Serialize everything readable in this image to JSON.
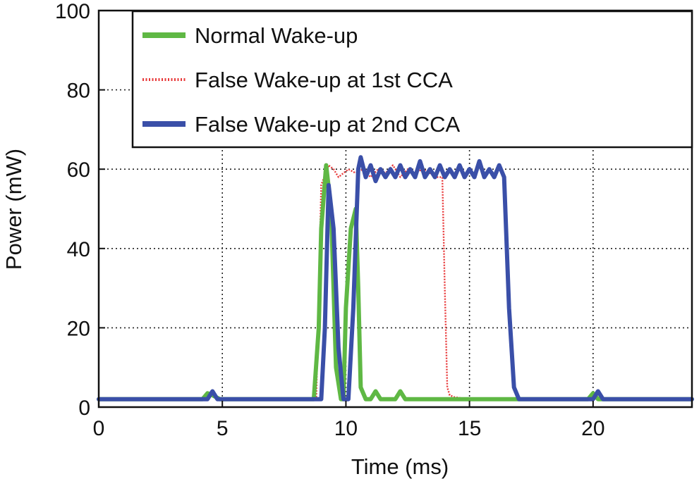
{
  "chart_data": {
    "type": "line",
    "title": "",
    "xlabel": "Time (ms)",
    "ylabel": "Power (mW)",
    "xlim": [
      0,
      24
    ],
    "ylim": [
      0,
      100
    ],
    "xticks": [
      0,
      5,
      10,
      15,
      20
    ],
    "yticks": [
      0,
      20,
      40,
      60,
      80,
      100
    ],
    "grid": true,
    "legend_position": "top-right",
    "series": [
      {
        "name": "False Wake-up at 1st CCA",
        "color": "#e8393a",
        "style": "dotted",
        "x": [
          0,
          4.1,
          4.3,
          4.5,
          4.7,
          4.9,
          8.8,
          9.0,
          9.3,
          9.5,
          9.7,
          9.9,
          10.1,
          10.4,
          10.7,
          11.0,
          11.3,
          11.6,
          11.9,
          12.2,
          12.5,
          12.8,
          13.1,
          13.4,
          13.7,
          13.9,
          14.0,
          14.1,
          14.2,
          14.4,
          15,
          16,
          17,
          19.9,
          20.1,
          20.3,
          24
        ],
        "y": [
          2,
          2,
          3,
          3.5,
          3,
          2,
          2,
          56,
          61,
          60,
          58,
          59,
          60,
          59,
          60,
          58,
          60,
          59,
          61,
          58,
          60,
          59,
          60,
          59,
          58,
          58,
          30,
          5,
          3,
          2.5,
          2,
          2,
          2,
          2,
          3,
          2,
          2
        ]
      },
      {
        "name": "Normal Wake-up",
        "color": "#5fb844",
        "style": "solid",
        "x": [
          0,
          4.2,
          4.4,
          4.6,
          4.9,
          8.7,
          8.9,
          9.0,
          9.2,
          9.4,
          9.6,
          9.8,
          9.9,
          10.0,
          10.2,
          10.4,
          10.5,
          10.6,
          10.8,
          11.0,
          11.2,
          11.4,
          12.0,
          12.2,
          12.4,
          13.0,
          19.8,
          20.0,
          20.2,
          24
        ],
        "y": [
          2,
          2,
          3.5,
          3,
          2,
          2,
          20,
          45,
          61,
          50,
          10,
          2,
          2,
          25,
          45,
          50,
          30,
          5,
          2,
          2,
          4,
          2,
          2,
          4,
          2,
          2,
          2,
          3.5,
          2,
          2
        ]
      },
      {
        "name": "False Wake-up at 2nd CCA",
        "color": "#3a4fa8",
        "style": "solid",
        "x": [
          0,
          4.4,
          4.6,
          4.8,
          9.0,
          9.15,
          9.3,
          9.5,
          9.7,
          9.9,
          10.1,
          10.3,
          10.5,
          10.6,
          10.8,
          11.0,
          11.2,
          11.4,
          11.6,
          11.8,
          12.0,
          12.2,
          12.4,
          12.6,
          12.8,
          13.0,
          13.2,
          13.4,
          13.6,
          13.8,
          14.0,
          14.2,
          14.4,
          14.6,
          14.8,
          15.0,
          15.2,
          15.4,
          15.6,
          15.8,
          16.0,
          16.2,
          16.4,
          16.6,
          16.8,
          17.0,
          20.0,
          20.2,
          20.4,
          24
        ],
        "y": [
          2,
          2,
          4,
          2,
          2,
          20,
          56,
          45,
          15,
          2,
          2,
          25,
          60,
          63,
          58,
          61,
          57,
          60,
          58,
          60,
          58,
          61,
          58,
          60,
          58,
          62,
          58,
          60,
          58,
          61,
          58,
          60,
          58,
          61,
          58,
          60,
          58,
          62,
          58,
          60,
          58,
          61,
          58,
          25,
          5,
          2,
          2,
          4,
          2,
          2
        ]
      }
    ]
  }
}
